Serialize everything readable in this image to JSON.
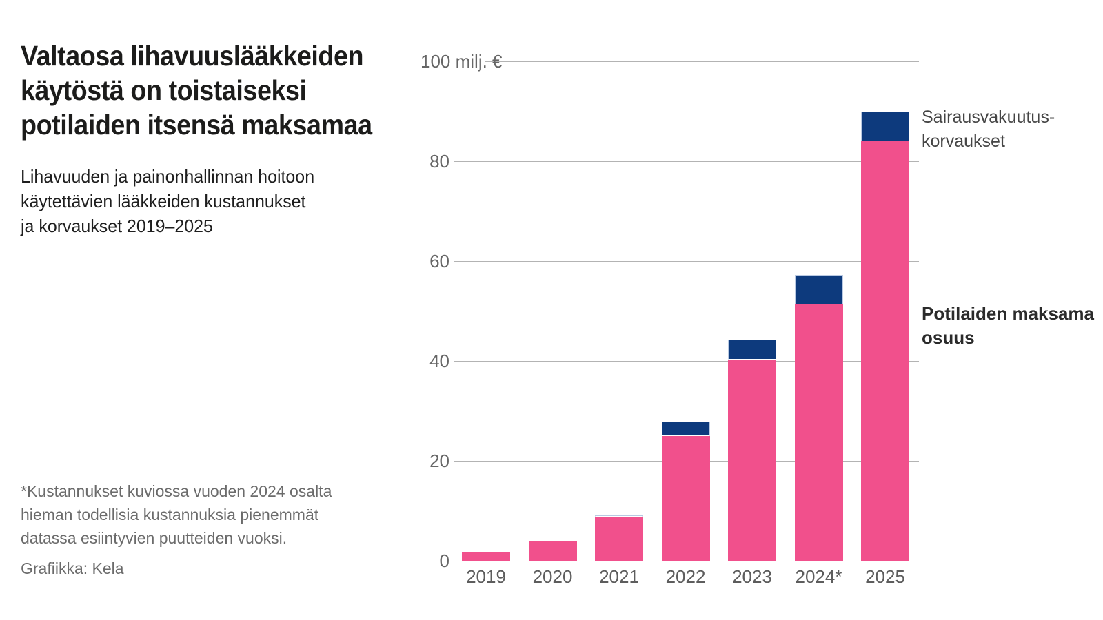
{
  "header": {
    "title": "Valtaosa lihavuuslääkkeiden\nkäytöstä on toistaiseksi\npotilaiden itsensä maksamaa",
    "subtitle": "Lihavuuden ja painonhallinnan hoitoon\nkäytettävien lääkkeiden kustannukset\nja korvaukset 2019–2025"
  },
  "footer": {
    "footnote": "*Kustannukset kuviossa vuoden 2024 osalta\nhieman todellisia kustannuksia pienemmät\ndatassa esiintyvien puutteiden vuoksi.",
    "credit": "Grafiikka: Kela"
  },
  "chart_data": {
    "type": "bar",
    "stacked": true,
    "title": "Lihavuuden ja painonhallinnan hoitoon käytettävien lääkkeiden kustannukset ja korvaukset 2019–2025",
    "unit": "milj. €",
    "categories": [
      "2019",
      "2020",
      "2021",
      "2022",
      "2023",
      "2024*",
      "2025"
    ],
    "series": [
      {
        "name": "Potilaiden maksama osuus",
        "color": "#f1508c",
        "values": [
          1.8,
          3.8,
          8.9,
          25.0,
          40.3,
          51.3,
          84.0
        ]
      },
      {
        "name": "Sairausvakuutuskorvaukset",
        "color": "#0d3a7d",
        "values": [
          0,
          0,
          0.25,
          2.8,
          4.0,
          5.9,
          6.0
        ]
      }
    ],
    "series_labels": {
      "reimbursements": "Sairausvakuutus-\nkorvaukset",
      "patients": "Potilaiden maksama\nosuus"
    },
    "yticks": [
      0,
      20,
      40,
      60,
      80,
      100
    ],
    "ytick_labels": [
      "0",
      "20",
      "40",
      "60",
      "80",
      "100 milj. €"
    ],
    "ylim": [
      0,
      100
    ],
    "grid": true,
    "legend_position": "right-annotations"
  },
  "colors": {
    "patient_pink": "#f1508c",
    "reimbursement_blue": "#0d3a7d",
    "segment_stroke": "#b9c9e2",
    "gridline": "#b3b3b3",
    "axis_text": "#666666",
    "title_text": "#1c1c1b",
    "muted_text": "#6b6b6b"
  }
}
